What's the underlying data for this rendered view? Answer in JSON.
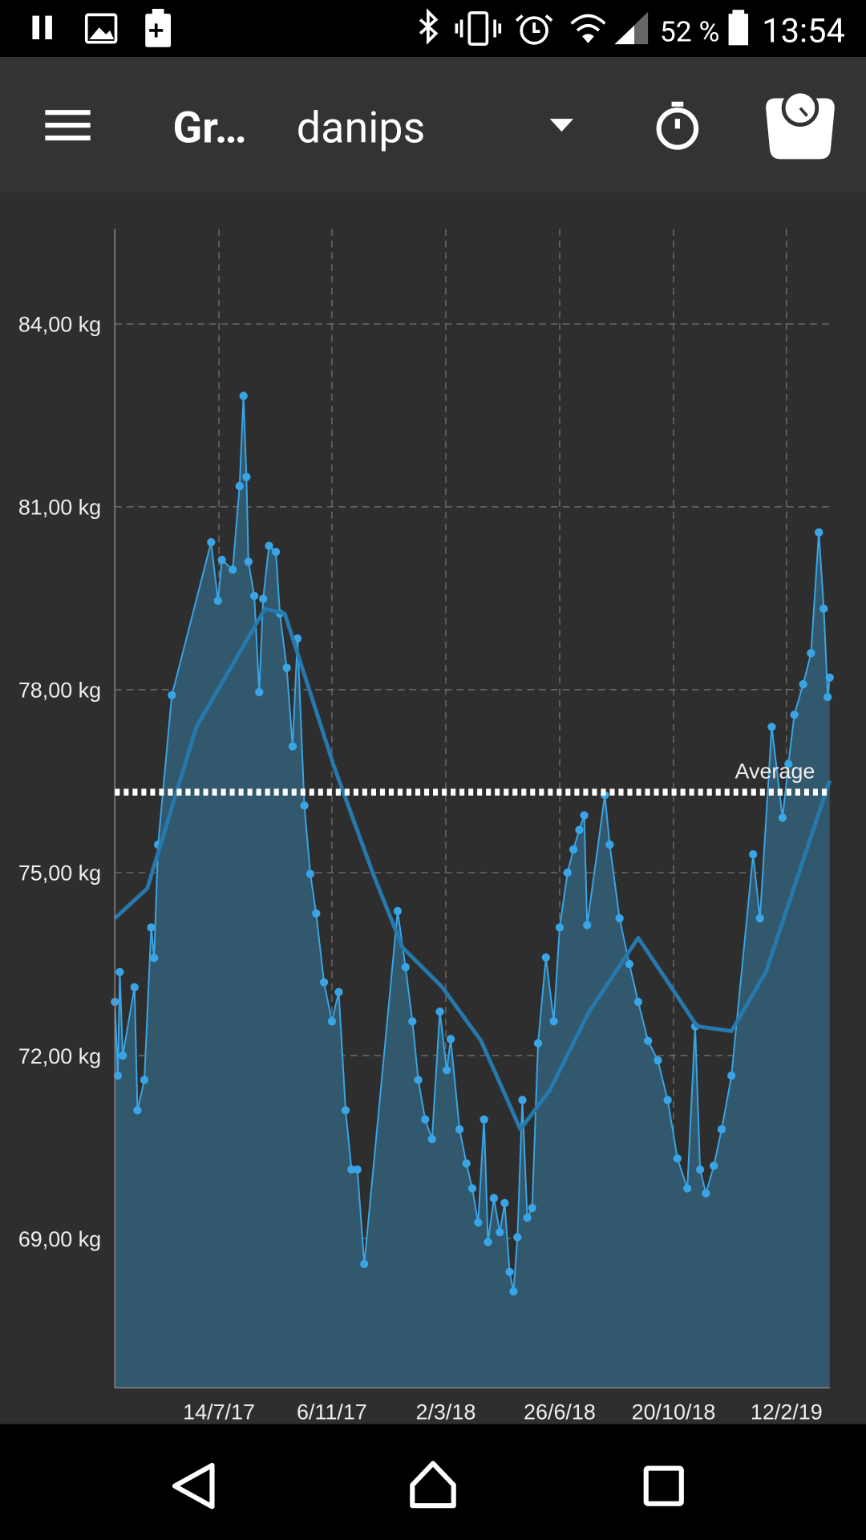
{
  "status_bar": {
    "battery": "52 %",
    "time": "13:54"
  },
  "app_bar": {
    "title": "Gr…",
    "user": "danips"
  },
  "chart_data": {
    "type": "line",
    "xlim": [
      "2017-03-30",
      "2019-03-28"
    ],
    "xticks": [
      {
        "value": "2017-07-14",
        "label": "14/7/17"
      },
      {
        "value": "2017-11-06",
        "label": "6/11/17"
      },
      {
        "value": "2018-03-02",
        "label": "2/3/18"
      },
      {
        "value": "2018-06-26",
        "label": "26/6/18"
      },
      {
        "value": "2018-10-20",
        "label": "20/10/18"
      },
      {
        "value": "2019-02-12",
        "label": "12/2/19"
      }
    ],
    "ylim": [
      66.55,
      85.56
    ],
    "yticks": [
      {
        "value": 69,
        "label": "69,00 kg"
      },
      {
        "value": 72,
        "label": "72,00 kg"
      },
      {
        "value": 75,
        "label": "75,00 kg"
      },
      {
        "value": 78,
        "label": "78,00 kg"
      },
      {
        "value": 81,
        "label": "81,00 kg"
      },
      {
        "value": 84,
        "label": "84,00 kg"
      }
    ],
    "grid": true,
    "average": {
      "label": "Average",
      "value": 76.32,
      "color": "#ffffff"
    },
    "series": [
      {
        "color": "#3aa5e6",
        "area_color": "#31586c",
        "markers": true,
        "x": [
          "2017-03-30",
          "2017-04-02",
          "2017-04-04",
          "2017-04-07",
          "2017-04-19",
          "2017-04-22",
          "2017-04-29",
          "2017-05-06",
          "2017-05-09",
          "2017-05-13",
          "2017-05-27",
          "2017-07-06",
          "2017-07-13",
          "2017-07-17",
          "2017-07-28",
          "2017-08-04",
          "2017-08-08",
          "2017-08-11",
          "2017-08-13",
          "2017-08-19",
          "2017-08-24",
          "2017-08-28",
          "2017-09-03",
          "2017-09-10",
          "2017-09-14",
          "2017-09-21",
          "2017-09-27",
          "2017-10-02",
          "2017-10-09",
          "2017-10-15",
          "2017-10-21",
          "2017-10-29",
          "2017-11-06",
          "2017-11-13",
          "2017-11-20",
          "2017-11-26",
          "2017-12-02",
          "2017-12-09",
          "2018-01-12",
          "2018-01-20",
          "2018-01-27",
          "2018-02-02",
          "2018-02-09",
          "2018-02-16",
          "2018-02-24",
          "2018-03-03",
          "2018-03-07",
          "2018-03-16",
          "2018-03-23",
          "2018-03-29",
          "2018-04-04",
          "2018-04-10",
          "2018-04-14",
          "2018-04-20",
          "2018-04-26",
          "2018-05-01",
          "2018-05-06",
          "2018-05-10",
          "2018-05-14",
          "2018-05-19",
          "2018-05-24",
          "2018-05-29",
          "2018-06-04",
          "2018-06-12",
          "2018-06-20",
          "2018-06-26",
          "2018-07-04",
          "2018-07-10",
          "2018-07-16",
          "2018-07-21",
          "2018-07-24",
          "2018-08-11",
          "2018-08-16",
          "2018-08-26",
          "2018-09-05",
          "2018-09-14",
          "2018-09-24",
          "2018-10-04",
          "2018-10-14",
          "2018-10-24",
          "2018-11-03",
          "2018-11-11",
          "2018-11-16",
          "2018-11-22",
          "2018-11-30",
          "2018-12-08",
          "2018-12-18",
          "2019-01-09",
          "2019-01-16",
          "2019-01-28",
          "2019-02-08",
          "2019-02-14",
          "2019-02-20",
          "2019-03-01",
          "2019-03-09",
          "2019-03-17",
          "2019-03-22",
          "2019-03-26",
          "2019-03-28"
        ],
        "values": [
          72.88,
          71.67,
          73.37,
          72.0,
          73.12,
          71.1,
          71.6,
          74.1,
          73.6,
          75.46,
          77.91,
          80.42,
          79.46,
          80.13,
          79.97,
          81.34,
          82.82,
          81.49,
          80.1,
          79.54,
          77.96,
          79.49,
          80.36,
          80.26,
          79.25,
          78.36,
          77.07,
          78.84,
          76.1,
          74.98,
          74.33,
          73.2,
          72.56,
          73.04,
          71.1,
          70.13,
          70.13,
          68.58,
          74.37,
          73.45,
          72.56,
          71.6,
          70.95,
          70.63,
          72.72,
          71.76,
          72.27,
          70.79,
          70.23,
          69.82,
          69.26,
          70.95,
          68.94,
          69.66,
          69.1,
          69.58,
          68.45,
          68.13,
          69.02,
          71.27,
          69.34,
          69.5,
          72.2,
          73.61,
          72.56,
          74.1,
          75.0,
          75.38,
          75.7,
          75.94,
          74.14,
          76.27,
          75.46,
          74.25,
          73.5,
          72.88,
          72.24,
          71.92,
          71.27,
          70.31,
          69.82,
          72.48,
          70.13,
          69.74,
          70.19,
          70.79,
          71.67,
          75.3,
          74.25,
          77.39,
          75.9,
          76.78,
          77.59,
          78.09,
          78.6,
          80.58,
          79.33,
          77.88,
          78.2
        ]
      },
      {
        "color": "#2679ad",
        "markers": false,
        "x": [
          "2017-03-30",
          "2017-05-02",
          "2017-06-21",
          "2017-08-30",
          "2017-09-19",
          "2017-11-08",
          "2017-12-18",
          "2018-01-17",
          "2018-02-26",
          "2018-04-07",
          "2018-05-17",
          "2018-06-16",
          "2018-07-26",
          "2018-09-14",
          "2018-10-14",
          "2018-11-13",
          "2018-12-18",
          "2019-01-22",
          "2019-03-28"
        ],
        "values": [
          74.25,
          74.74,
          77.39,
          79.33,
          79.25,
          76.75,
          74.98,
          73.77,
          73.13,
          72.24,
          70.79,
          71.43,
          72.72,
          73.93,
          73.21,
          72.48,
          72.4,
          73.37,
          76.51
        ]
      }
    ]
  }
}
